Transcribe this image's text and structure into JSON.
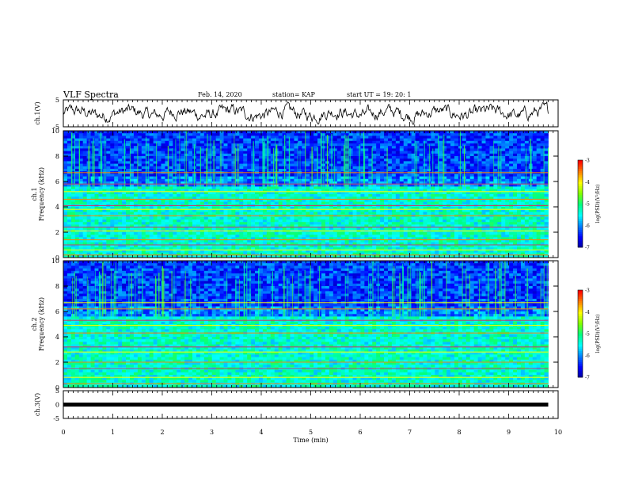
{
  "header": {
    "title": "VLF Spectra",
    "date": "Feb. 14, 2020",
    "station": "station= KAP",
    "start_ut": "start  UT  =   19: 20: 1"
  },
  "colors": {
    "waveform": "#000000",
    "spectrogram_colormap": [
      "#000099",
      "#0000ff",
      "#0080ff",
      "#00ffff",
      "#00ff80",
      "#80ff00",
      "#ffff00",
      "#ff8000",
      "#ff0000",
      "#ffffff"
    ]
  },
  "chart_data": [
    {
      "type": "line",
      "panel": "ch1-waveform",
      "ylabel": "ch.1(V)",
      "ylim": [
        -5,
        5
      ],
      "y_ticks": [
        "5",
        "-5"
      ],
      "xlim": [
        0,
        10
      ],
      "description_values": "noisy waveform oscillating roughly between -3 and 3 V over 0-9.8 min",
      "x_end": 9.8
    },
    {
      "type": "heatmap",
      "panel": "ch1-spectrogram",
      "ylabel": "ch.1\nFrequency (kHz)",
      "ylim": [
        0,
        10
      ],
      "y_ticks": [
        "0",
        "2",
        "4",
        "6",
        "8",
        "10"
      ],
      "xlim": [
        0,
        10
      ],
      "x_end": 9.8,
      "bands_khz": [
        0.2,
        0.6,
        1.0,
        1.4,
        2.1,
        2.4,
        3.3,
        3.8,
        4.1,
        4.6,
        5.2,
        5.8,
        6.7
      ],
      "colorbar": {
        "label": "log(PSD)(V²/Hz)",
        "ticks": [
          "-3",
          "-4",
          "-5",
          "-6",
          "-7"
        ],
        "range": [
          -7,
          -3
        ]
      }
    },
    {
      "type": "heatmap",
      "panel": "ch2-spectrogram",
      "ylabel": "ch.2\nFrequency (kHz)",
      "ylim": [
        0,
        10
      ],
      "y_ticks": [
        "0",
        "2",
        "4",
        "6",
        "8",
        "10"
      ],
      "xlim": [
        0,
        10
      ],
      "x_end": 9.8,
      "bands_khz": [
        0.3,
        0.8,
        1.5,
        2.0,
        2.8,
        3.2,
        4.3,
        4.9,
        5.3,
        6.2,
        6.7
      ],
      "colorbar": {
        "label": "log(PSD)(V²/Hz)",
        "ticks": [
          "-3",
          "-4",
          "-5",
          "-6",
          "-7"
        ],
        "range": [
          -7,
          -3
        ]
      }
    },
    {
      "type": "line",
      "panel": "ch3-waveform",
      "ylabel": "ch.3(V)",
      "ylim": [
        -5,
        5
      ],
      "y_ticks": [
        "5",
        "0",
        "-5"
      ],
      "xlim": [
        0,
        10
      ],
      "x_end": 9.8,
      "constant_value": 0
    }
  ],
  "x_axis": {
    "label": "Time  (min)",
    "ticks": [
      "0",
      "1",
      "2",
      "3",
      "4",
      "5",
      "6",
      "7",
      "8",
      "9",
      "10"
    ]
  }
}
